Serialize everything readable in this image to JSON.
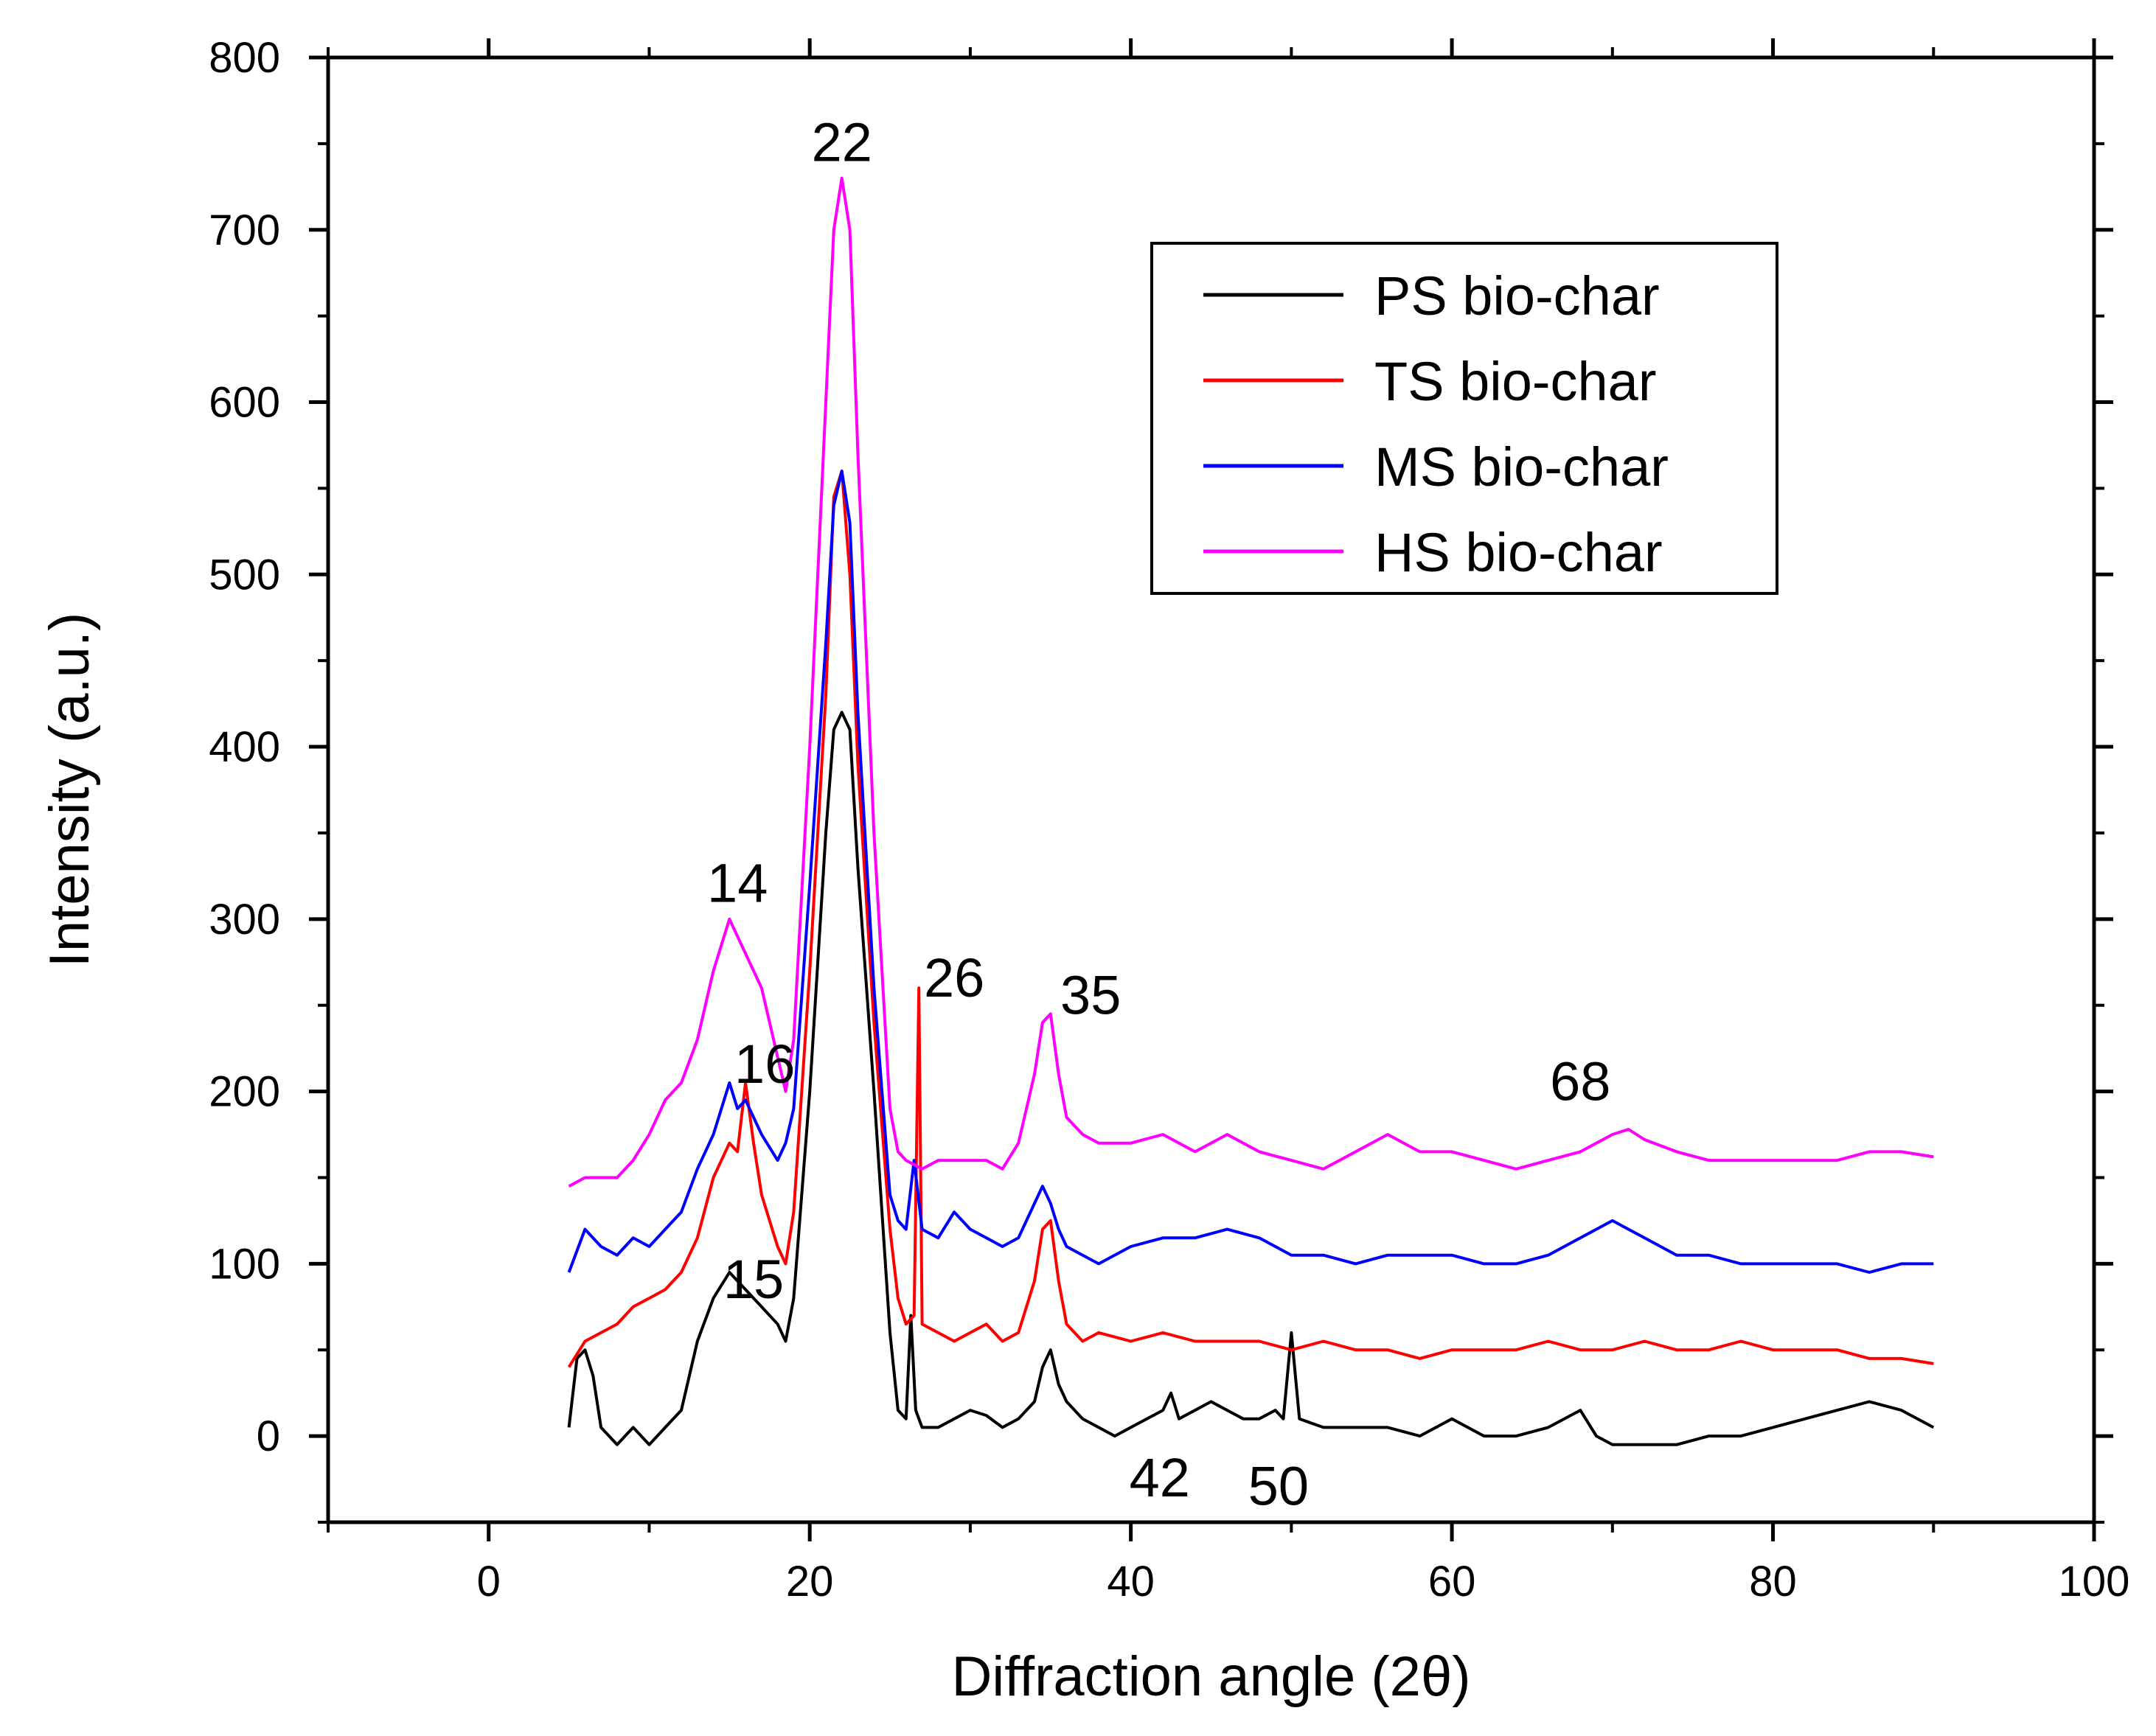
{
  "chart_data": {
    "type": "line",
    "title": "",
    "xlabel": "Diffraction angle (2θ)",
    "ylabel": "Intensity (a.u.)",
    "xlim": [
      -10,
      100
    ],
    "ylim": [
      -50,
      800
    ],
    "x_ticks": [
      0,
      20,
      40,
      60,
      80,
      100
    ],
    "y_ticks": [
      0,
      100,
      200,
      300,
      400,
      500,
      600,
      700,
      800
    ],
    "grid": false,
    "legend_position": "top-right",
    "series": [
      {
        "name": "PS bio-char",
        "color": "#000000",
        "points": [
          [
            5,
            5
          ],
          [
            5.5,
            45
          ],
          [
            6,
            50
          ],
          [
            6.5,
            35
          ],
          [
            7,
            5
          ],
          [
            8,
            -5
          ],
          [
            9,
            5
          ],
          [
            10,
            -5
          ],
          [
            11,
            5
          ],
          [
            12,
            15
          ],
          [
            13,
            55
          ],
          [
            14,
            80
          ],
          [
            15,
            95
          ],
          [
            16,
            85
          ],
          [
            17,
            75
          ],
          [
            18,
            65
          ],
          [
            18.5,
            55
          ],
          [
            19,
            80
          ],
          [
            20,
            200
          ],
          [
            21,
            350
          ],
          [
            21.5,
            410
          ],
          [
            22,
            420
          ],
          [
            22.5,
            410
          ],
          [
            23,
            330
          ],
          [
            24,
            200
          ],
          [
            25,
            60
          ],
          [
            25.5,
            15
          ],
          [
            26,
            10
          ],
          [
            26.3,
            70
          ],
          [
            26.6,
            15
          ],
          [
            27,
            5
          ],
          [
            28,
            5
          ],
          [
            29,
            10
          ],
          [
            30,
            15
          ],
          [
            31,
            12
          ],
          [
            32,
            5
          ],
          [
            33,
            10
          ],
          [
            34,
            20
          ],
          [
            34.5,
            40
          ],
          [
            35,
            50
          ],
          [
            35.5,
            30
          ],
          [
            36,
            20
          ],
          [
            37,
            10
          ],
          [
            38,
            5
          ],
          [
            39,
            0
          ],
          [
            40,
            5
          ],
          [
            41,
            10
          ],
          [
            42,
            15
          ],
          [
            42.5,
            25
          ],
          [
            43,
            10
          ],
          [
            44,
            15
          ],
          [
            45,
            20
          ],
          [
            46,
            15
          ],
          [
            47,
            10
          ],
          [
            48,
            10
          ],
          [
            49,
            15
          ],
          [
            49.5,
            10
          ],
          [
            50,
            60
          ],
          [
            50.5,
            10
          ],
          [
            52,
            5
          ],
          [
            54,
            5
          ],
          [
            56,
            5
          ],
          [
            58,
            0
          ],
          [
            60,
            10
          ],
          [
            62,
            0
          ],
          [
            64,
            0
          ],
          [
            66,
            5
          ],
          [
            68,
            15
          ],
          [
            69,
            0
          ],
          [
            70,
            -5
          ],
          [
            72,
            -5
          ],
          [
            74,
            -5
          ],
          [
            76,
            0
          ],
          [
            78,
            0
          ],
          [
            80,
            5
          ],
          [
            82,
            10
          ],
          [
            84,
            15
          ],
          [
            86,
            20
          ],
          [
            88,
            15
          ],
          [
            90,
            5
          ]
        ]
      },
      {
        "name": "TS bio-char",
        "color": "#ff0000",
        "points": [
          [
            5,
            40
          ],
          [
            6,
            55
          ],
          [
            7,
            60
          ],
          [
            8,
            65
          ],
          [
            9,
            75
          ],
          [
            10,
            80
          ],
          [
            11,
            85
          ],
          [
            12,
            95
          ],
          [
            13,
            115
          ],
          [
            14,
            150
          ],
          [
            15,
            170
          ],
          [
            15.5,
            165
          ],
          [
            16,
            205
          ],
          [
            16.5,
            170
          ],
          [
            17,
            140
          ],
          [
            18,
            110
          ],
          [
            18.5,
            100
          ],
          [
            19,
            130
          ],
          [
            20,
            270
          ],
          [
            21,
            430
          ],
          [
            21.5,
            545
          ],
          [
            22,
            560
          ],
          [
            22.5,
            500
          ],
          [
            23,
            390
          ],
          [
            24,
            240
          ],
          [
            25,
            120
          ],
          [
            25.5,
            80
          ],
          [
            26,
            65
          ],
          [
            26.5,
            70
          ],
          [
            26.8,
            260
          ],
          [
            27,
            65
          ],
          [
            28,
            60
          ],
          [
            29,
            55
          ],
          [
            30,
            60
          ],
          [
            31,
            65
          ],
          [
            32,
            55
          ],
          [
            33,
            60
          ],
          [
            34,
            90
          ],
          [
            34.5,
            120
          ],
          [
            35,
            125
          ],
          [
            35.5,
            90
          ],
          [
            36,
            65
          ],
          [
            37,
            55
          ],
          [
            38,
            60
          ],
          [
            40,
            55
          ],
          [
            42,
            60
          ],
          [
            44,
            55
          ],
          [
            46,
            55
          ],
          [
            48,
            55
          ],
          [
            50,
            50
          ],
          [
            52,
            55
          ],
          [
            54,
            50
          ],
          [
            56,
            50
          ],
          [
            58,
            45
          ],
          [
            60,
            50
          ],
          [
            62,
            50
          ],
          [
            64,
            50
          ],
          [
            66,
            55
          ],
          [
            68,
            50
          ],
          [
            70,
            50
          ],
          [
            72,
            55
          ],
          [
            74,
            50
          ],
          [
            76,
            50
          ],
          [
            78,
            55
          ],
          [
            80,
            50
          ],
          [
            82,
            50
          ],
          [
            84,
            50
          ],
          [
            86,
            45
          ],
          [
            88,
            45
          ],
          [
            90,
            42
          ]
        ]
      },
      {
        "name": "MS bio-char",
        "color": "#0000ff",
        "points": [
          [
            5,
            95
          ],
          [
            6,
            120
          ],
          [
            7,
            110
          ],
          [
            8,
            105
          ],
          [
            9,
            115
          ],
          [
            10,
            110
          ],
          [
            11,
            120
          ],
          [
            12,
            130
          ],
          [
            13,
            155
          ],
          [
            14,
            175
          ],
          [
            15,
            205
          ],
          [
            15.5,
            190
          ],
          [
            16,
            195
          ],
          [
            16.5,
            185
          ],
          [
            17,
            175
          ],
          [
            18,
            160
          ],
          [
            18.5,
            170
          ],
          [
            19,
            190
          ],
          [
            20,
            320
          ],
          [
            21,
            460
          ],
          [
            21.5,
            540
          ],
          [
            22,
            560
          ],
          [
            22.5,
            530
          ],
          [
            23,
            420
          ],
          [
            24,
            260
          ],
          [
            25,
            140
          ],
          [
            25.5,
            125
          ],
          [
            26,
            120
          ],
          [
            26.5,
            160
          ],
          [
            27,
            120
          ],
          [
            28,
            115
          ],
          [
            29,
            130
          ],
          [
            30,
            120
          ],
          [
            31,
            115
          ],
          [
            32,
            110
          ],
          [
            33,
            115
          ],
          [
            34,
            135
          ],
          [
            34.5,
            145
          ],
          [
            35,
            135
          ],
          [
            35.5,
            120
          ],
          [
            36,
            110
          ],
          [
            37,
            105
          ],
          [
            38,
            100
          ],
          [
            40,
            110
          ],
          [
            42,
            115
          ],
          [
            44,
            115
          ],
          [
            46,
            120
          ],
          [
            48,
            115
          ],
          [
            50,
            105
          ],
          [
            52,
            105
          ],
          [
            54,
            100
          ],
          [
            56,
            105
          ],
          [
            58,
            105
          ],
          [
            60,
            105
          ],
          [
            62,
            100
          ],
          [
            64,
            100
          ],
          [
            66,
            105
          ],
          [
            68,
            115
          ],
          [
            69,
            120
          ],
          [
            70,
            125
          ],
          [
            71,
            120
          ],
          [
            72,
            115
          ],
          [
            74,
            105
          ],
          [
            76,
            105
          ],
          [
            78,
            100
          ],
          [
            80,
            100
          ],
          [
            82,
            100
          ],
          [
            84,
            100
          ],
          [
            86,
            95
          ],
          [
            88,
            100
          ],
          [
            90,
            100
          ]
        ]
      },
      {
        "name": "HS bio-char",
        "color": "#ff00ff",
        "points": [
          [
            5,
            145
          ],
          [
            6,
            150
          ],
          [
            7,
            150
          ],
          [
            8,
            150
          ],
          [
            9,
            160
          ],
          [
            10,
            175
          ],
          [
            11,
            195
          ],
          [
            12,
            205
          ],
          [
            13,
            230
          ],
          [
            14,
            270
          ],
          [
            15,
            300
          ],
          [
            15.5,
            290
          ],
          [
            16,
            280
          ],
          [
            17,
            260
          ],
          [
            18,
            220
          ],
          [
            18.5,
            200
          ],
          [
            19,
            230
          ],
          [
            20,
            400
          ],
          [
            21,
            600
          ],
          [
            21.5,
            700
          ],
          [
            22,
            730
          ],
          [
            22.5,
            700
          ],
          [
            23,
            570
          ],
          [
            24,
            350
          ],
          [
            25,
            190
          ],
          [
            25.5,
            165
          ],
          [
            26,
            160
          ],
          [
            27,
            155
          ],
          [
            28,
            160
          ],
          [
            29,
            160
          ],
          [
            30,
            160
          ],
          [
            31,
            160
          ],
          [
            32,
            155
          ],
          [
            33,
            170
          ],
          [
            34,
            210
          ],
          [
            34.5,
            240
          ],
          [
            35,
            245
          ],
          [
            35.5,
            210
          ],
          [
            36,
            185
          ],
          [
            37,
            175
          ],
          [
            38,
            170
          ],
          [
            40,
            170
          ],
          [
            42,
            175
          ],
          [
            44,
            165
          ],
          [
            46,
            175
          ],
          [
            48,
            165
          ],
          [
            50,
            160
          ],
          [
            52,
            155
          ],
          [
            54,
            165
          ],
          [
            56,
            175
          ],
          [
            58,
            165
          ],
          [
            60,
            165
          ],
          [
            62,
            160
          ],
          [
            64,
            155
          ],
          [
            66,
            160
          ],
          [
            68,
            165
          ],
          [
            70,
            175
          ],
          [
            71,
            178
          ],
          [
            72,
            172
          ],
          [
            74,
            165
          ],
          [
            76,
            160
          ],
          [
            78,
            160
          ],
          [
            80,
            160
          ],
          [
            82,
            160
          ],
          [
            84,
            160
          ],
          [
            86,
            165
          ],
          [
            88,
            165
          ],
          [
            90,
            162
          ]
        ]
      }
    ],
    "annotations": [
      {
        "text": "22",
        "x": 22,
        "y": 740
      },
      {
        "text": "14",
        "x": 15.5,
        "y": 310
      },
      {
        "text": "16",
        "x": 17.2,
        "y": 205
      },
      {
        "text": "15",
        "x": 16.5,
        "y": 80
      },
      {
        "text": "26",
        "x": 29,
        "y": 255
      },
      {
        "text": "35",
        "x": 37.5,
        "y": 245
      },
      {
        "text": "68",
        "x": 68,
        "y": 195
      },
      {
        "text": "42",
        "x": 41.8,
        "y": -35
      },
      {
        "text": "50",
        "x": 49.2,
        "y": -40
      }
    ]
  }
}
